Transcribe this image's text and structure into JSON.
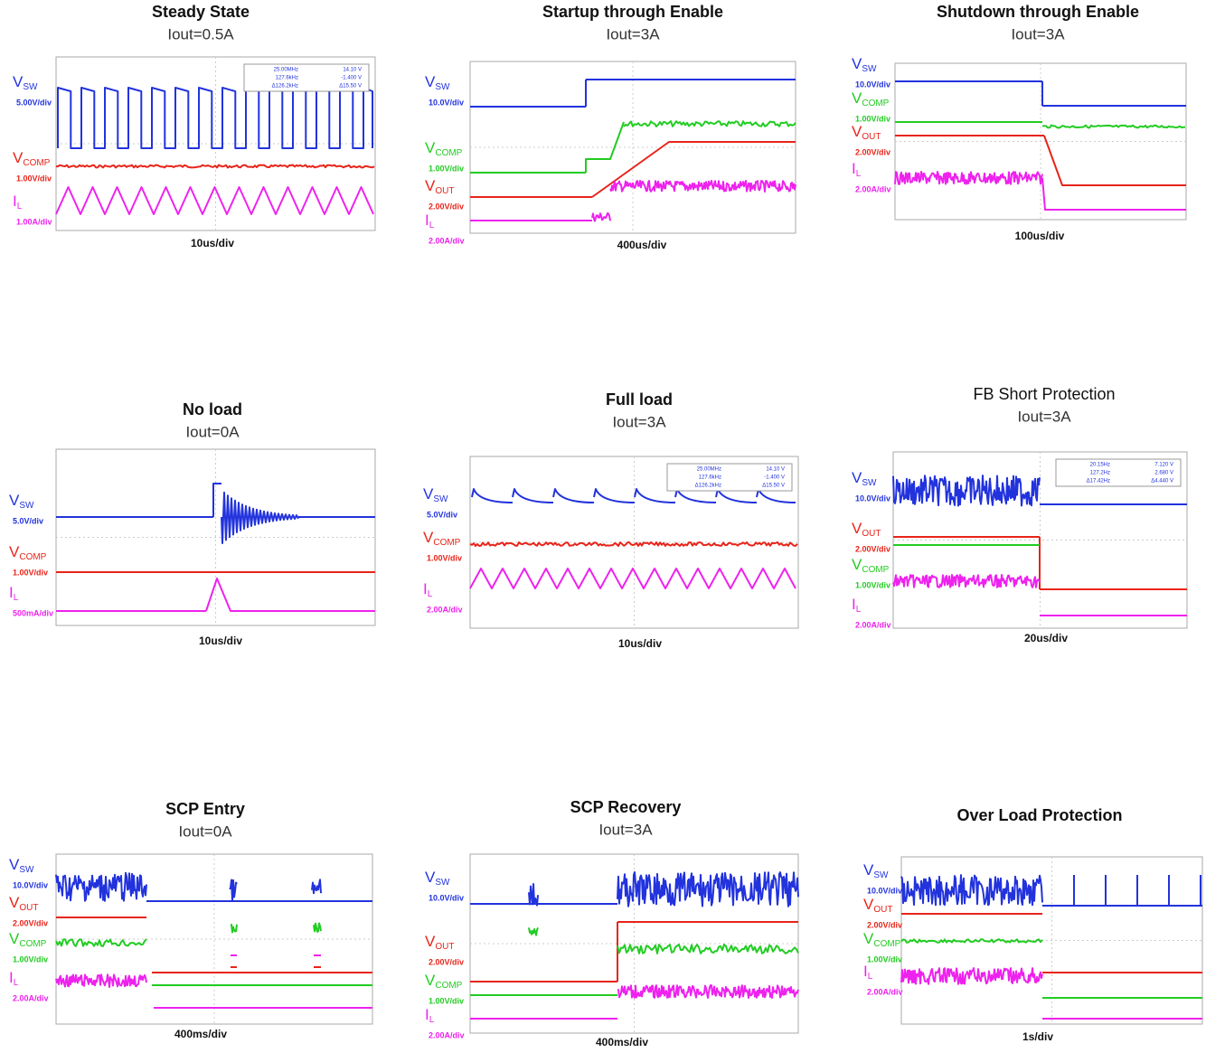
{
  "panels": [
    {
      "title": "Steady State",
      "subtitle": "Iout=0.5A",
      "timebase": "10us/div",
      "readout": [
        [
          "25.00MHz",
          "14.10 V"
        ],
        [
          "127.6kHz",
          "-1.400 V"
        ],
        [
          "Δ126.2kHz",
          "Δ15.50 V"
        ]
      ],
      "channels": [
        {
          "symbol": "V",
          "sub": "SW",
          "scale": "5.00V/div",
          "color": "#2233dd"
        },
        {
          "symbol": "V",
          "sub": "COMP",
          "scale": "1.00V/div",
          "color": "#e8241a"
        },
        {
          "symbol": "I",
          "sub": "L",
          "scale": "1.00A/div",
          "color": "#ee22ee"
        }
      ]
    },
    {
      "title": "Startup through Enable",
      "subtitle": "Iout=3A",
      "timebase": "400us/div",
      "channels": [
        {
          "symbol": "V",
          "sub": "SW",
          "scale": "10.0V/div",
          "color": "#2233dd"
        },
        {
          "symbol": "V",
          "sub": "COMP",
          "scale": "1.00V/div",
          "color": "#22cc22"
        },
        {
          "symbol": "V",
          "sub": "OUT",
          "scale": "2.00V/div",
          "color": "#e8241a"
        },
        {
          "symbol": "I",
          "sub": "L",
          "scale": "2.00A/div",
          "color": "#ee22ee"
        }
      ]
    },
    {
      "title": "Shutdown through Enable",
      "subtitle": "Iout=3A",
      "timebase": "100us/div",
      "channels": [
        {
          "symbol": "V",
          "sub": "SW",
          "scale": "10.0V/div",
          "color": "#2233dd"
        },
        {
          "symbol": "V",
          "sub": "COMP",
          "scale": "1.00V/div",
          "color": "#22cc22"
        },
        {
          "symbol": "V",
          "sub": "OUT",
          "scale": "2.00V/div",
          "color": "#e8241a"
        },
        {
          "symbol": "I",
          "sub": "L",
          "scale": "2.00A/div",
          "color": "#ee22ee"
        }
      ]
    },
    {
      "title": "No load",
      "subtitle": "Iout=0A",
      "timebase": "10us/div",
      "channels": [
        {
          "symbol": "V",
          "sub": "SW",
          "scale": "5.0V/div",
          "color": "#2233dd"
        },
        {
          "symbol": "V",
          "sub": "COMP",
          "scale": "1.00V/div",
          "color": "#e8241a"
        },
        {
          "symbol": "I",
          "sub": "L",
          "scale": "500mA/div",
          "color": "#ee22ee"
        }
      ]
    },
    {
      "title": "Full load",
      "subtitle": "Iout=3A",
      "timebase": "10us/div",
      "readout": [
        [
          "25.00MHz",
          "14.10 V"
        ],
        [
          "127.6kHz",
          "-1.400 V"
        ],
        [
          "Δ126.2kHz",
          "Δ15.50 V"
        ]
      ],
      "channels": [
        {
          "symbol": "V",
          "sub": "SW",
          "scale": "5.0V/div",
          "color": "#2233dd"
        },
        {
          "symbol": "V",
          "sub": "COMP",
          "scale": "1.00V/div",
          "color": "#e8241a"
        },
        {
          "symbol": "I",
          "sub": "L",
          "scale": "2.00A/div",
          "color": "#ee22ee"
        }
      ]
    },
    {
      "title": "FB Short Protection",
      "subtitle": "Iout=3A",
      "timebase": "20us/div",
      "readout": [
        [
          "20.15Hz",
          "7.120 V"
        ],
        [
          "127.2Hz",
          "2.680 V"
        ],
        [
          "Δ17.42Hz",
          "Δ4.440 V"
        ]
      ],
      "channels": [
        {
          "symbol": "V",
          "sub": "SW",
          "scale": "10.0V/div",
          "color": "#2233dd"
        },
        {
          "symbol": "V",
          "sub": "OUT",
          "scale": "2.00V/div",
          "color": "#e8241a"
        },
        {
          "symbol": "V",
          "sub": "COMP",
          "scale": "1.00V/div",
          "color": "#22cc22"
        },
        {
          "symbol": "I",
          "sub": "L",
          "scale": "2.00A/div",
          "color": "#ee22ee"
        }
      ]
    },
    {
      "title": "SCP Entry",
      "subtitle": "Iout=0A",
      "timebase": "400ms/div",
      "channels": [
        {
          "symbol": "V",
          "sub": "SW",
          "scale": "10.0V/div",
          "color": "#2233dd"
        },
        {
          "symbol": "V",
          "sub": "OUT",
          "scale": "2.00V/div",
          "color": "#e8241a"
        },
        {
          "symbol": "V",
          "sub": "COMP",
          "scale": "1.00V/div",
          "color": "#22cc22"
        },
        {
          "symbol": "I",
          "sub": "L",
          "scale": "2.00A/div",
          "color": "#ee22ee"
        }
      ]
    },
    {
      "title": "SCP Recovery",
      "subtitle": "Iout=3A",
      "timebase": "400ms/div",
      "channels": [
        {
          "symbol": "V",
          "sub": "SW",
          "scale": "10.0V/div",
          "color": "#2233dd"
        },
        {
          "symbol": "V",
          "sub": "OUT",
          "scale": "2.00V/div",
          "color": "#e8241a"
        },
        {
          "symbol": "V",
          "sub": "COMP",
          "scale": "1.00V/div",
          "color": "#22cc22"
        },
        {
          "symbol": "I",
          "sub": "L",
          "scale": "2.00A/div",
          "color": "#ee22ee"
        }
      ]
    },
    {
      "title": "Over Load Protection",
      "timebase": "1s/div",
      "channels": [
        {
          "symbol": "V",
          "sub": "SW",
          "scale": "10.0V/div",
          "color": "#2233dd"
        },
        {
          "symbol": "V",
          "sub": "OUT",
          "scale": "2.00V/div",
          "color": "#e8241a"
        },
        {
          "symbol": "V",
          "sub": "COMP",
          "scale": "1.00V/div",
          "color": "#22cc22"
        },
        {
          "symbol": "I",
          "sub": "L",
          "scale": "2.00A/div",
          "color": "#ee22ee"
        }
      ]
    }
  ]
}
